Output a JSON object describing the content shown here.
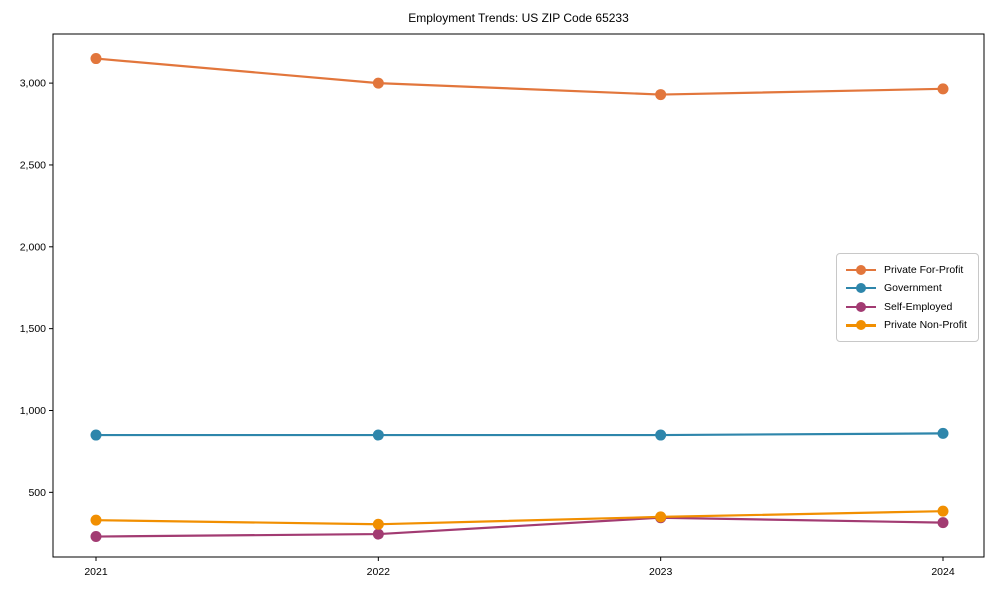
{
  "figure": {
    "background_color": "#ffffff",
    "text_color": "#000000"
  },
  "chart_data": {
    "type": "line",
    "title": "Employment Trends: US ZIP Code 65233",
    "categories": [
      "2021",
      "2022",
      "2023",
      "2024"
    ],
    "series": [
      {
        "name": "Private For-Profit",
        "color": "#E2763C",
        "values": [
          3150,
          3000,
          2930,
          2965
        ]
      },
      {
        "name": "Government",
        "color": "#2E86AB",
        "values": [
          850,
          850,
          850,
          860
        ]
      },
      {
        "name": "Self-Employed",
        "color": "#A23B72",
        "values": [
          230,
          245,
          345,
          315
        ]
      },
      {
        "name": "Private Non-Profit",
        "color": "#F18F01",
        "values": [
          330,
          305,
          350,
          385
        ]
      }
    ],
    "yticks": [
      500,
      1000,
      1500,
      2000,
      2500,
      3000
    ],
    "yticklabels": [
      "500",
      "1,000",
      "1,500",
      "2,000",
      "2,500",
      "3,000"
    ],
    "ylim": [
      105,
      3300
    ],
    "grid": false,
    "marker": "circle",
    "legend_position": "center-right"
  }
}
